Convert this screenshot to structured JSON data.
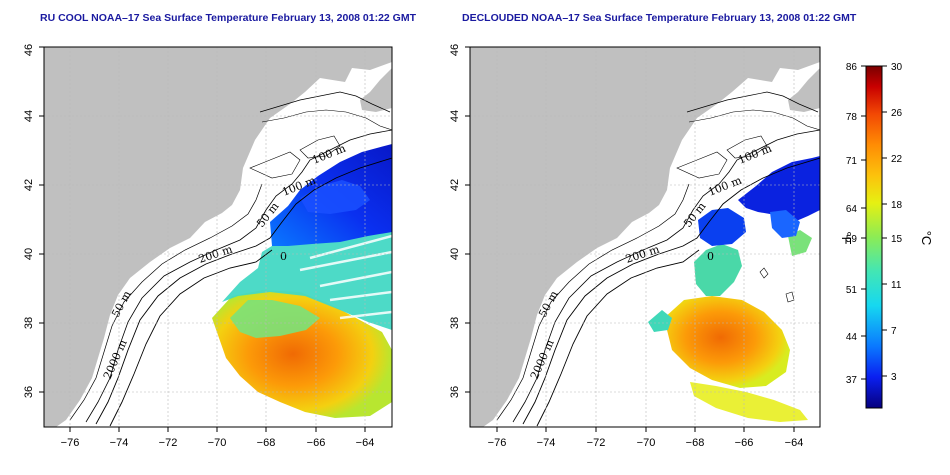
{
  "panels": [
    {
      "id": "left",
      "title": "RU COOL NOAA–17 Sea Surface Temperature February 13, 2008 01:22 GMT"
    },
    {
      "id": "right",
      "title": "DECLOUDED NOAA–17 Sea Surface Temperature February 13, 2008 01:22 GMT"
    }
  ],
  "axes": {
    "lon_ticks": [
      "−76",
      "−74",
      "−72",
      "−70",
      "−68",
      "−66",
      "−64"
    ],
    "lat_ticks": [
      "36",
      "38",
      "40",
      "42",
      "44",
      "46"
    ],
    "lon_range": [
      -77,
      -63
    ],
    "lat_range": [
      35,
      46
    ]
  },
  "contour_labels": {
    "m100_a": "100 m",
    "m100_b": "100 m",
    "m50_a": "50 m",
    "m50_b": "50 m",
    "m200": "200 m",
    "m2000": "2000 m",
    "zero": "0"
  },
  "colorbar": {
    "fahrenheit_ticks": [
      "86",
      "78",
      "71",
      "64",
      "59",
      "51",
      "44",
      "37"
    ],
    "celsius_ticks": [
      "30",
      "26",
      "22",
      "18",
      "15",
      "11",
      "7",
      "3"
    ],
    "fahrenheit_unit": "°F",
    "celsius_unit": "°C",
    "celsius_range": [
      0,
      30
    ],
    "colors": [
      "#06007e",
      "#0a1ff0",
      "#0a78ff",
      "#16d8f0",
      "#43e6b4",
      "#8cec55",
      "#e6f012",
      "#fcc20c",
      "#ff8c04",
      "#f24804",
      "#c80000",
      "#7a0000"
    ]
  },
  "colors": {
    "land": "#c0c0c0",
    "ocean": "#ffffff",
    "grid": "#b8b8b8",
    "title": "#1a1aa0"
  }
}
